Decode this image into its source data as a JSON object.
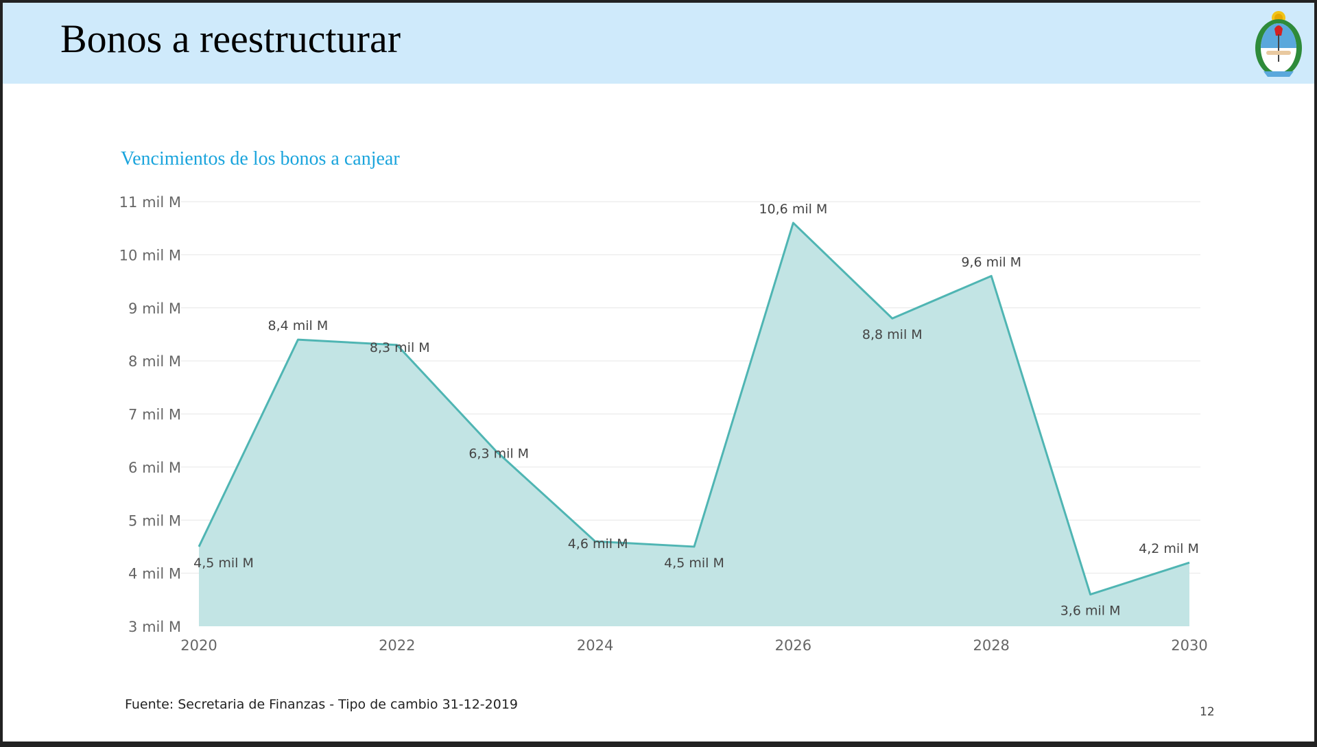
{
  "slide": {
    "title": "Bonos a reestructurar",
    "source": "Fuente: Secretaria de Finanzas  - Tipo de cambio 31-12-2019",
    "page_number": "12",
    "emblem_icon": "argentina-coat-of-arms-icon"
  },
  "colors": {
    "header_band": "#cfeafb",
    "chart_title": "#1aa4dc",
    "area_fill": "#c2e4e4",
    "line": "#4fb5b3",
    "grid": "#e6e6e6"
  },
  "chart_data": {
    "type": "area",
    "title": "Vencimientos de los bonos a canjear",
    "xlabel": "",
    "ylabel": "",
    "x": [
      2020,
      2021,
      2022,
      2023,
      2024,
      2025,
      2026,
      2027,
      2028,
      2029,
      2030
    ],
    "values": [
      4.5,
      8.4,
      8.3,
      6.3,
      4.6,
      4.5,
      10.6,
      8.8,
      9.6,
      3.6,
      4.2
    ],
    "data_labels": [
      "4,5 mil M",
      "8,4 mil M",
      "8,3 mil M",
      "6,3 mil M",
      "4,6 mil M",
      "4,5 mil M",
      "10,6 mil M",
      "8,8 mil M",
      "9,6 mil M",
      "3,6 mil M",
      "4,2 mil M"
    ],
    "ylim": [
      3,
      11
    ],
    "yticks": [
      3,
      4,
      5,
      6,
      7,
      8,
      9,
      10,
      11
    ],
    "ytick_labels": [
      "3 mil M",
      "4 mil M",
      "5 mil M",
      "6 mil M",
      "7 mil M",
      "8 mil M",
      "9 mil M",
      "10 mil M",
      "11 mil M"
    ],
    "xticks": [
      2020,
      2022,
      2024,
      2026,
      2028,
      2030
    ],
    "xtick_labels": [
      "2020",
      "2022",
      "2024",
      "2026",
      "2028",
      "2030"
    ],
    "grid": true,
    "legend": "none"
  }
}
